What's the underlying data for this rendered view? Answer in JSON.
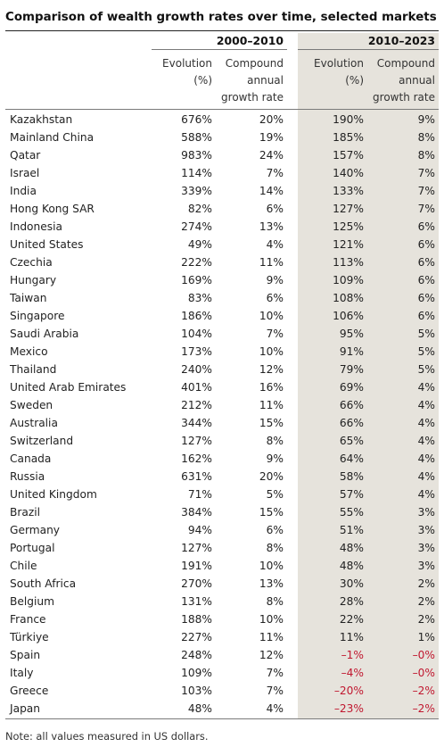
{
  "title": "Comparison of wealth growth rates over time, selected markets",
  "periods": [
    "2000–2010",
    "2010–2023"
  ],
  "column_headers": {
    "evolution": "Evolution\n(%)",
    "cagr": "Compound\nannual\ngrowth rate"
  },
  "note": "Note: all values measured in US dollars.",
  "colors": {
    "negative": "#c0172f",
    "shaded_column": "#e6e3dc"
  },
  "chart_data": {
    "type": "table",
    "title": "Comparison of wealth growth rates over time, selected markets",
    "columns": [
      "2000–2010 Evolution (%)",
      "2000–2010 Compound annual growth rate",
      "2010–2023 Evolution (%)",
      "2010–2023 Compound annual growth rate"
    ],
    "rows": [
      {
        "country": "Kazakhstan",
        "evo_2000_2010": "676%",
        "cagr_2000_2010": "20%",
        "evo_2010_2023": "190%",
        "cagr_2010_2023": "9%"
      },
      {
        "country": "Mainland China",
        "evo_2000_2010": "588%",
        "cagr_2000_2010": "19%",
        "evo_2010_2023": "185%",
        "cagr_2010_2023": "8%"
      },
      {
        "country": "Qatar",
        "evo_2000_2010": "983%",
        "cagr_2000_2010": "24%",
        "evo_2010_2023": "157%",
        "cagr_2010_2023": "8%"
      },
      {
        "country": "Israel",
        "evo_2000_2010": "114%",
        "cagr_2000_2010": "7%",
        "evo_2010_2023": "140%",
        "cagr_2010_2023": "7%"
      },
      {
        "country": "India",
        "evo_2000_2010": "339%",
        "cagr_2000_2010": "14%",
        "evo_2010_2023": "133%",
        "cagr_2010_2023": "7%"
      },
      {
        "country": "Hong Kong SAR",
        "evo_2000_2010": "82%",
        "cagr_2000_2010": "6%",
        "evo_2010_2023": "127%",
        "cagr_2010_2023": "7%"
      },
      {
        "country": "Indonesia",
        "evo_2000_2010": "274%",
        "cagr_2000_2010": "13%",
        "evo_2010_2023": "125%",
        "cagr_2010_2023": "6%"
      },
      {
        "country": "United States",
        "evo_2000_2010": "49%",
        "cagr_2000_2010": "4%",
        "evo_2010_2023": "121%",
        "cagr_2010_2023": "6%"
      },
      {
        "country": "Czechia",
        "evo_2000_2010": "222%",
        "cagr_2000_2010": "11%",
        "evo_2010_2023": "113%",
        "cagr_2010_2023": "6%"
      },
      {
        "country": "Hungary",
        "evo_2000_2010": "169%",
        "cagr_2000_2010": "9%",
        "evo_2010_2023": "109%",
        "cagr_2010_2023": "6%"
      },
      {
        "country": "Taiwan",
        "evo_2000_2010": "83%",
        "cagr_2000_2010": "6%",
        "evo_2010_2023": "108%",
        "cagr_2010_2023": "6%"
      },
      {
        "country": "Singapore",
        "evo_2000_2010": "186%",
        "cagr_2000_2010": "10%",
        "evo_2010_2023": "106%",
        "cagr_2010_2023": "6%"
      },
      {
        "country": "Saudi Arabia",
        "evo_2000_2010": "104%",
        "cagr_2000_2010": "7%",
        "evo_2010_2023": "95%",
        "cagr_2010_2023": "5%"
      },
      {
        "country": "Mexico",
        "evo_2000_2010": "173%",
        "cagr_2000_2010": "10%",
        "evo_2010_2023": "91%",
        "cagr_2010_2023": "5%"
      },
      {
        "country": "Thailand",
        "evo_2000_2010": "240%",
        "cagr_2000_2010": "12%",
        "evo_2010_2023": "79%",
        "cagr_2010_2023": "5%"
      },
      {
        "country": "United Arab Emirates",
        "evo_2000_2010": "401%",
        "cagr_2000_2010": "16%",
        "evo_2010_2023": "69%",
        "cagr_2010_2023": "4%"
      },
      {
        "country": "Sweden",
        "evo_2000_2010": "212%",
        "cagr_2000_2010": "11%",
        "evo_2010_2023": "66%",
        "cagr_2010_2023": "4%"
      },
      {
        "country": "Australia",
        "evo_2000_2010": "344%",
        "cagr_2000_2010": "15%",
        "evo_2010_2023": "66%",
        "cagr_2010_2023": "4%"
      },
      {
        "country": "Switzerland",
        "evo_2000_2010": "127%",
        "cagr_2000_2010": "8%",
        "evo_2010_2023": "65%",
        "cagr_2010_2023": "4%"
      },
      {
        "country": "Canada",
        "evo_2000_2010": "162%",
        "cagr_2000_2010": "9%",
        "evo_2010_2023": "64%",
        "cagr_2010_2023": "4%"
      },
      {
        "country": "Russia",
        "evo_2000_2010": "631%",
        "cagr_2000_2010": "20%",
        "evo_2010_2023": "58%",
        "cagr_2010_2023": "4%"
      },
      {
        "country": "United Kingdom",
        "evo_2000_2010": "71%",
        "cagr_2000_2010": "5%",
        "evo_2010_2023": "57%",
        "cagr_2010_2023": "4%"
      },
      {
        "country": "Brazil",
        "evo_2000_2010": "384%",
        "cagr_2000_2010": "15%",
        "evo_2010_2023": "55%",
        "cagr_2010_2023": "3%"
      },
      {
        "country": "Germany",
        "evo_2000_2010": "94%",
        "cagr_2000_2010": "6%",
        "evo_2010_2023": "51%",
        "cagr_2010_2023": "3%"
      },
      {
        "country": "Portugal",
        "evo_2000_2010": "127%",
        "cagr_2000_2010": "8%",
        "evo_2010_2023": "48%",
        "cagr_2010_2023": "3%"
      },
      {
        "country": "Chile",
        "evo_2000_2010": "191%",
        "cagr_2000_2010": "10%",
        "evo_2010_2023": "48%",
        "cagr_2010_2023": "3%"
      },
      {
        "country": "South Africa",
        "evo_2000_2010": "270%",
        "cagr_2000_2010": "13%",
        "evo_2010_2023": "30%",
        "cagr_2010_2023": "2%"
      },
      {
        "country": "Belgium",
        "evo_2000_2010": "131%",
        "cagr_2000_2010": "8%",
        "evo_2010_2023": "28%",
        "cagr_2010_2023": "2%"
      },
      {
        "country": "France",
        "evo_2000_2010": "188%",
        "cagr_2000_2010": "10%",
        "evo_2010_2023": "22%",
        "cagr_2010_2023": "2%"
      },
      {
        "country": "Türkiye",
        "evo_2000_2010": "227%",
        "cagr_2000_2010": "11%",
        "evo_2010_2023": "11%",
        "cagr_2010_2023": "1%"
      },
      {
        "country": "Spain",
        "evo_2000_2010": "248%",
        "cagr_2000_2010": "12%",
        "evo_2010_2023": "–1%",
        "cagr_2010_2023": "–0%"
      },
      {
        "country": "Italy",
        "evo_2000_2010": "109%",
        "cagr_2000_2010": "7%",
        "evo_2010_2023": "–4%",
        "cagr_2010_2023": "–0%"
      },
      {
        "country": "Greece",
        "evo_2000_2010": "103%",
        "cagr_2000_2010": "7%",
        "evo_2010_2023": "–20%",
        "cagr_2010_2023": "–2%"
      },
      {
        "country": "Japan",
        "evo_2000_2010": "48%",
        "cagr_2000_2010": "4%",
        "evo_2010_2023": "–23%",
        "cagr_2010_2023": "–2%"
      }
    ]
  }
}
